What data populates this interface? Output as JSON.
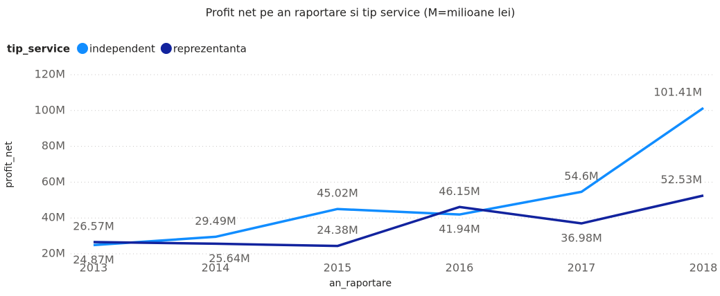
{
  "chart_data": {
    "type": "line",
    "title": "Profit net pe an raportare si tip service (M=milioane lei)",
    "legend_title": "tip_service",
    "xlabel": "an_raportare",
    "ylabel": "profit_net",
    "x": [
      2013,
      2014,
      2015,
      2016,
      2017,
      2018
    ],
    "xlim": [
      2013,
      2018
    ],
    "xticks": [
      2013,
      2014,
      2015,
      2016,
      2017,
      2018
    ],
    "ylim": [
      20,
      120
    ],
    "yticks": [
      {
        "value": 20,
        "label": "20M"
      },
      {
        "value": 40,
        "label": "40M"
      },
      {
        "value": 60,
        "label": "60M"
      },
      {
        "value": 80,
        "label": "80M"
      },
      {
        "value": 100,
        "label": "100M"
      },
      {
        "value": 120,
        "label": "120M"
      }
    ],
    "grid": true,
    "legend": "top-left",
    "series": [
      {
        "name": "independent",
        "color": "#118dff",
        "values": [
          24.87,
          29.49,
          45.02,
          41.94,
          54.6,
          101.41
        ],
        "value_labels": [
          "24.87M",
          "29.49M",
          "45.02M",
          "41.94M",
          "54.6M",
          "101.41M"
        ]
      },
      {
        "name": "reprezentanta",
        "color": "#12239e",
        "values": [
          26.57,
          25.64,
          24.38,
          46.15,
          36.98,
          52.53
        ],
        "value_labels": [
          "26.57M",
          "25.64M",
          "24.38M",
          "46.15M",
          "36.98M",
          "52.53M"
        ]
      }
    ]
  }
}
